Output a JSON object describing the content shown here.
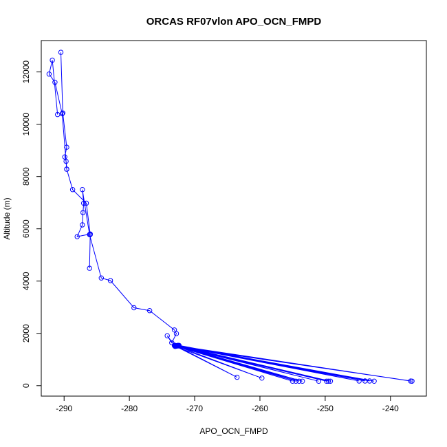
{
  "chart_data": {
    "type": "line",
    "title": "ORCAS RF07vlon APO_OCN_FMPD",
    "xlabel": "APO_OCN_FMPD",
    "ylabel": "Altitude (m)",
    "xlim": [
      -293.5,
      -234.5
    ],
    "ylim": [
      -400,
      13200
    ],
    "xticks": [
      -290,
      -280,
      -270,
      -260,
      -250,
      -240
    ],
    "yticks": [
      0,
      2000,
      4000,
      6000,
      8000,
      10000,
      12000
    ],
    "xtick_labels": [
      "-290",
      "-280",
      "-270",
      "-260",
      "-250",
      "-240"
    ],
    "ytick_labels": [
      "0",
      "2000",
      "4000",
      "6000",
      "8000",
      "10000",
      "12000"
    ],
    "grid": false,
    "markers": "open-circle",
    "series": [
      {
        "color": "#0000ff",
        "x": [
          -290.5,
          -290.2,
          -289.6,
          -289.9,
          -289.7,
          -289.6,
          -288.7,
          -286.6,
          -286.0,
          -288.0,
          -287.2,
          -287.1,
          -287.0,
          -287.2,
          -286.1,
          -284.3,
          -282.9,
          -279.3,
          -276.9,
          -273.1,
          -272.8,
          -273.5,
          -274.2,
          -273.1,
          -273.0,
          -272.5,
          -273.0,
          -255.0,
          -272.9,
          -254.5,
          -272.8,
          -254.0,
          -273.0,
          -253.5,
          -272.7,
          -251.0,
          -272.9,
          -249.8,
          -272.6,
          -249.5,
          -272.8,
          -249.2,
          -272.5,
          -244.8,
          -272.7,
          -243.9,
          -272.4,
          -243.2,
          -272.6,
          -242.5,
          -272.5,
          -236.9,
          -272.9,
          -236.7,
          -273.0,
          -259.7,
          -272.8,
          -263.5,
          -273.1
        ],
        "y": [
          12750,
          10430,
          9120,
          8750,
          8580,
          8280,
          7500,
          6980,
          5800,
          5700,
          6150,
          6620,
          6980,
          7500,
          5780,
          4120,
          4020,
          2980,
          2870,
          2130,
          1990,
          1640,
          1910,
          1550,
          1530,
          1540,
          1520,
          170,
          1530,
          170,
          1520,
          170,
          1510,
          170,
          1530,
          170,
          1520,
          170,
          1540,
          170,
          1510,
          170,
          1530,
          180,
          1520,
          180,
          1540,
          180,
          1530,
          170,
          1520,
          175,
          1510,
          170,
          1500,
          290,
          1520,
          320,
          1530
        ],
        "y_extra_comment": ""
      }
    ],
    "upper_branch": {
      "x": [
        -289.6,
        -290.3,
        -291.4,
        -292.3,
        -291.8,
        -291.0
      ],
      "y": [
        8280,
        10400,
        11600,
        11920,
        12450,
        10370
      ]
    },
    "lower_branch": {
      "x": [
        -286.0,
        -286.1
      ],
      "y": [
        5780,
        4490
      ]
    }
  }
}
